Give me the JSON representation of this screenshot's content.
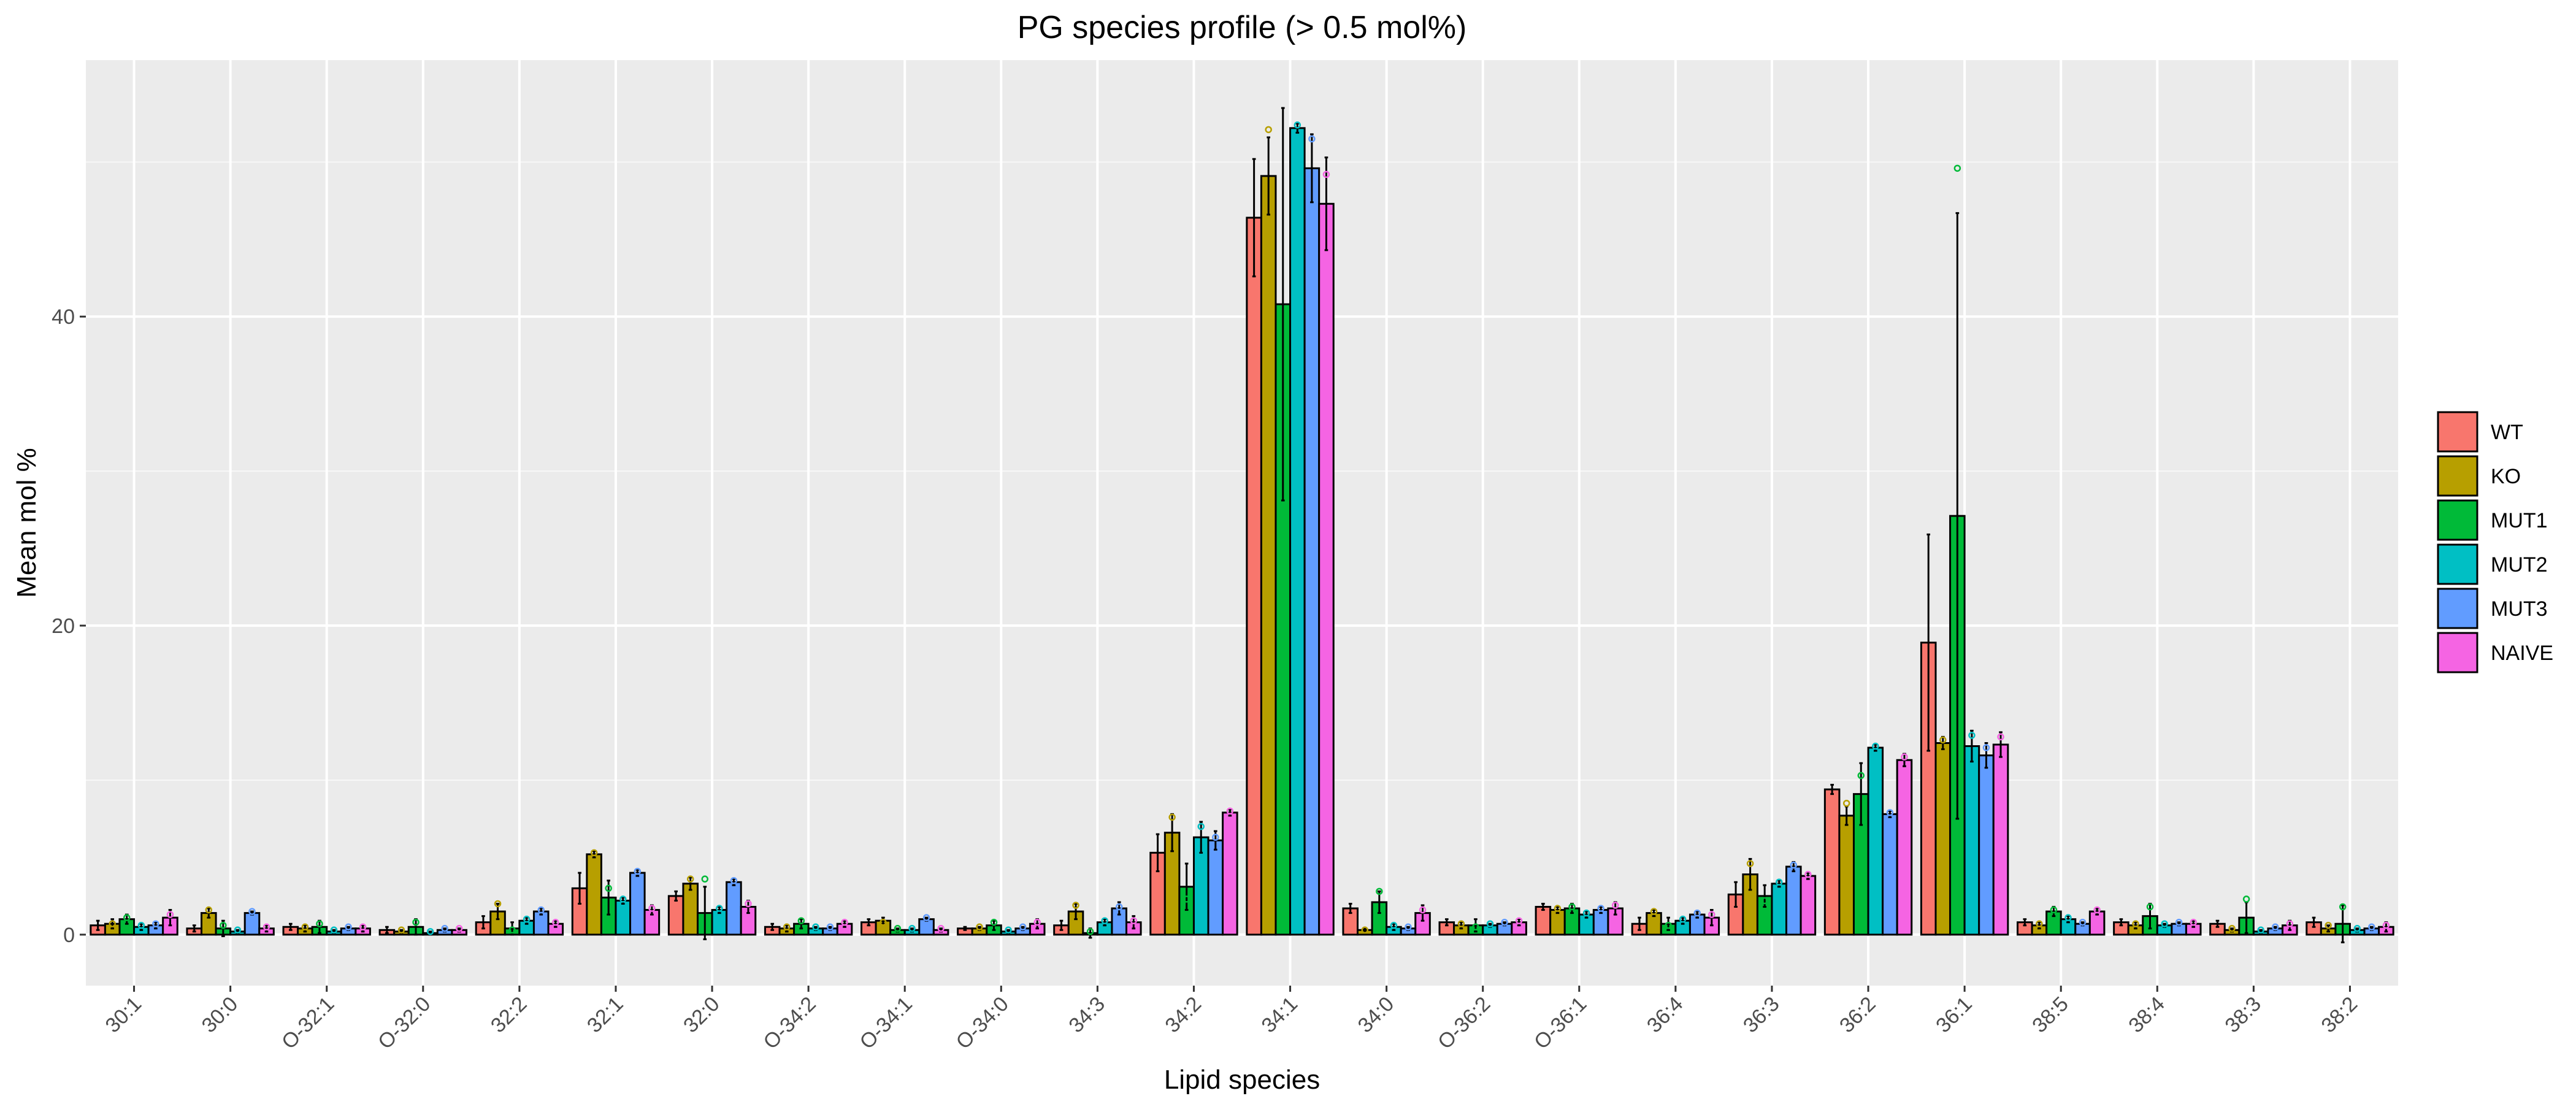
{
  "chart_data": {
    "type": "bar",
    "title": "PG species profile (> 0.5 mol%)",
    "xlabel": "Lipid species",
    "ylabel": "Mean mol %",
    "ylim": [
      -3.3,
      56.6
    ],
    "yticks": [
      0,
      20,
      40
    ],
    "grid": true,
    "legend_position": "right",
    "categories": [
      "30:1",
      "30:0",
      "O-32:1",
      "O-32:0",
      "32:2",
      "32:1",
      "32:0",
      "O-34:2",
      "O-34:1",
      "O-34:0",
      "34:3",
      "34:2",
      "34:1",
      "34:0",
      "O-36:2",
      "O-36:1",
      "36:4",
      "36:3",
      "36:2",
      "36:1",
      "38:5",
      "38:4",
      "38:3",
      "38:2"
    ],
    "series": [
      {
        "name": "WT",
        "color": "#F8766D",
        "values": [
          0.6,
          0.4,
          0.5,
          0.3,
          0.8,
          3.0,
          2.5,
          0.5,
          0.8,
          0.4,
          0.6,
          5.3,
          46.4,
          1.7,
          0.8,
          1.8,
          0.7,
          2.6,
          9.4,
          18.9,
          0.8,
          0.8,
          0.7,
          0.8
        ],
        "errors": [
          0.3,
          0.2,
          0.2,
          0.2,
          0.4,
          1.0,
          0.3,
          0.2,
          0.2,
          0.1,
          0.3,
          1.2,
          3.8,
          0.3,
          0.2,
          0.2,
          0.4,
          0.8,
          0.3,
          7.0,
          0.2,
          0.2,
          0.2,
          0.3
        ]
      },
      {
        "name": "KO",
        "color": "#B79F00",
        "values": [
          0.7,
          1.4,
          0.4,
          0.2,
          1.5,
          5.2,
          3.3,
          0.4,
          0.9,
          0.4,
          1.5,
          6.6,
          49.1,
          0.3,
          0.6,
          1.6,
          1.4,
          3.9,
          7.7,
          12.4,
          0.6,
          0.6,
          0.3,
          0.4
        ],
        "errors": [
          0.3,
          0.3,
          0.2,
          0.1,
          0.5,
          0.2,
          0.4,
          0.2,
          0.2,
          0.1,
          0.5,
          1.2,
          2.5,
          0.1,
          0.2,
          0.2,
          0.2,
          1.0,
          0.6,
          0.4,
          0.2,
          0.2,
          0.1,
          0.2
        ],
        "dots": [
          0.7,
          1.6,
          0.5,
          0.3,
          2.0,
          5.3,
          3.6,
          0.5,
          0.8,
          0.5,
          1.9,
          7.6,
          52.1,
          0.3,
          0.7,
          1.7,
          1.5,
          4.6,
          8.5,
          12.6,
          0.7,
          0.7,
          0.4,
          0.6
        ]
      },
      {
        "name": "MUT1",
        "color": "#00BA38",
        "values": [
          1.0,
          0.4,
          0.5,
          0.5,
          0.4,
          2.4,
          1.4,
          0.7,
          0.3,
          0.6,
          0.1,
          3.1,
          40.8,
          2.1,
          0.6,
          1.7,
          0.7,
          2.5,
          9.1,
          27.1,
          1.5,
          1.2,
          1.1,
          0.7
        ],
        "errors": [
          0.3,
          0.5,
          0.4,
          0.5,
          0.4,
          1.1,
          1.7,
          0.3,
          0.1,
          0.3,
          0.3,
          1.5,
          12.7,
          0.7,
          0.4,
          0.3,
          0.4,
          0.7,
          2.0,
          19.6,
          0.3,
          0.8,
          1.0,
          1.2
        ],
        "dots": [
          1.1,
          0.6,
          0.7,
          0.8,
          0.3,
          3.0,
          3.6,
          0.9,
          0.4,
          0.8,
          0.2,
          2.3,
          26.1,
          2.8,
          0.5,
          1.8,
          0.6,
          2.2,
          10.3,
          49.6,
          1.6,
          1.8,
          2.3,
          1.8
        ]
      },
      {
        "name": "MUT2",
        "color": "#00BFC4",
        "values": [
          0.5,
          0.2,
          0.2,
          0.1,
          0.9,
          2.2,
          1.6,
          0.4,
          0.3,
          0.2,
          0.8,
          6.3,
          52.2,
          0.5,
          0.6,
          1.3,
          0.9,
          3.3,
          12.1,
          12.2,
          1.0,
          0.6,
          0.2,
          0.3
        ],
        "errors": [
          0.2,
          0.1,
          0.1,
          0.1,
          0.2,
          0.2,
          0.2,
          0.1,
          0.1,
          0.1,
          0.2,
          1.0,
          0.3,
          0.2,
          0.1,
          0.2,
          0.2,
          0.2,
          0.2,
          1.0,
          0.2,
          0.1,
          0.1,
          0.1
        ],
        "dots": [
          0.6,
          0.3,
          0.3,
          0.2,
          1.0,
          2.3,
          1.7,
          0.5,
          0.4,
          0.3,
          0.9,
          7.0,
          52.4,
          0.6,
          0.7,
          1.4,
          1.0,
          3.4,
          12.2,
          12.9,
          1.1,
          0.7,
          0.3,
          0.4
        ]
      },
      {
        "name": "MUT3",
        "color": "#619CFF",
        "values": [
          0.6,
          1.4,
          0.4,
          0.3,
          1.5,
          4.0,
          3.4,
          0.4,
          1.0,
          0.4,
          1.7,
          6.1,
          49.6,
          0.4,
          0.7,
          1.6,
          1.3,
          4.4,
          7.8,
          11.6,
          0.7,
          0.7,
          0.4,
          0.4
        ],
        "errors": [
          0.2,
          0.1,
          0.1,
          0.1,
          0.2,
          0.2,
          0.2,
          0.1,
          0.1,
          0.1,
          0.4,
          0.6,
          2.2,
          0.1,
          0.1,
          0.2,
          0.2,
          0.3,
          0.2,
          0.8,
          0.1,
          0.1,
          0.1,
          0.1
        ],
        "dots": [
          0.7,
          1.5,
          0.5,
          0.4,
          1.6,
          4.1,
          3.5,
          0.5,
          1.1,
          0.5,
          1.8,
          6.3,
          51.5,
          0.5,
          0.8,
          1.7,
          1.4,
          4.5,
          7.9,
          12.1,
          0.8,
          0.8,
          0.5,
          0.5
        ]
      },
      {
        "name": "NAIVE",
        "color": "#F564E3",
        "values": [
          1.1,
          0.4,
          0.4,
          0.3,
          0.7,
          1.6,
          1.8,
          0.7,
          0.3,
          0.7,
          0.8,
          7.9,
          47.3,
          1.4,
          0.8,
          1.7,
          1.1,
          3.8,
          11.3,
          12.3,
          1.5,
          0.7,
          0.6,
          0.5
        ],
        "errors": [
          0.5,
          0.2,
          0.2,
          0.1,
          0.2,
          0.3,
          0.4,
          0.2,
          0.1,
          0.3,
          0.4,
          0.2,
          3.0,
          0.5,
          0.2,
          0.4,
          0.5,
          0.2,
          0.4,
          0.8,
          0.2,
          0.2,
          0.3,
          0.3
        ],
        "dots": [
          1.3,
          0.5,
          0.5,
          0.4,
          0.8,
          1.7,
          2.0,
          0.8,
          0.4,
          0.8,
          0.9,
          8.0,
          49.2,
          1.6,
          0.9,
          1.9,
          1.3,
          3.9,
          11.5,
          12.8,
          1.6,
          0.8,
          0.7,
          0.6
        ]
      }
    ]
  }
}
